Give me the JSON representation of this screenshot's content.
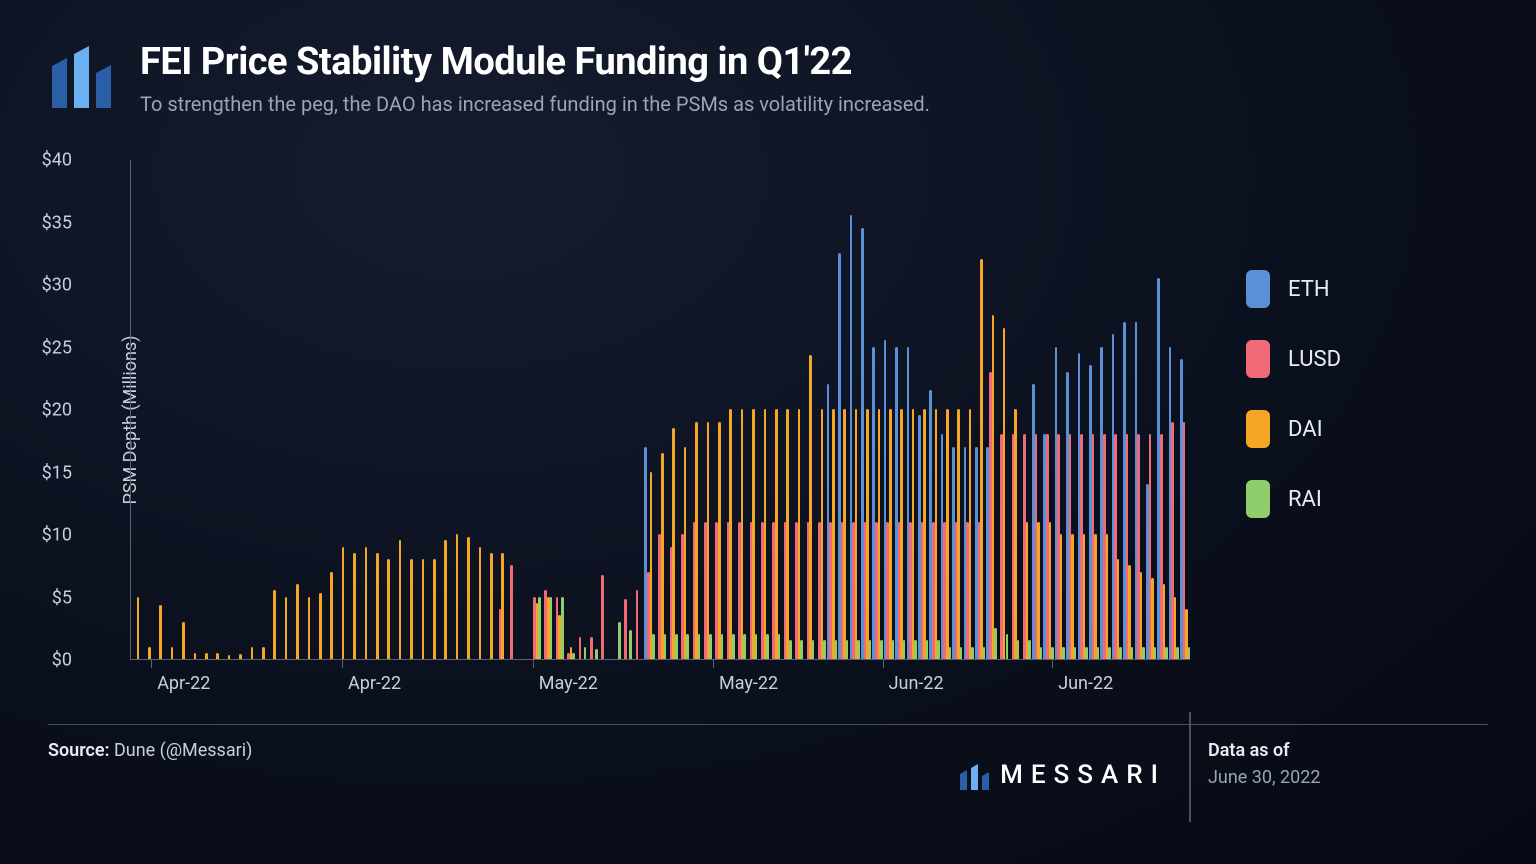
{
  "header": {
    "title": "FEI Price Stability Module Funding in Q1'22",
    "subtitle": "To strengthen the peg, the DAO has increased funding in the PSMs as volatility increased."
  },
  "chart": {
    "type": "grouped-bar",
    "ylabel": "PSM Depth (Millions)",
    "ylim": [
      0,
      40
    ],
    "ytick_step": 5,
    "ytick_prefix": "$",
    "y_tick_fontsize": 18,
    "x_labels": [
      "Apr-22",
      "Apr-22",
      "May-22",
      "May-22",
      "Jun-22",
      "Jun-22"
    ],
    "x_tick_fontsize": 18,
    "background_color": "transparent",
    "axis_color": "#5a6272",
    "bar_radius": 2,
    "series": [
      {
        "name": "ETH",
        "color": "#5b8fd6"
      },
      {
        "name": "LUSD",
        "color": "#f06a78"
      },
      {
        "name": "DAI",
        "color": "#f5a623"
      },
      {
        "name": "RAI",
        "color": "#8fce6a"
      }
    ],
    "data": [
      {
        "ETH": 0,
        "LUSD": 0,
        "DAI": 5,
        "RAI": 0
      },
      {
        "ETH": 0,
        "LUSD": 0,
        "DAI": 1,
        "RAI": 0
      },
      {
        "ETH": 0,
        "LUSD": 0,
        "DAI": 4.3,
        "RAI": 0
      },
      {
        "ETH": 0,
        "LUSD": 0,
        "DAI": 1,
        "RAI": 0
      },
      {
        "ETH": 0,
        "LUSD": 0,
        "DAI": 3,
        "RAI": 0
      },
      {
        "ETH": 0,
        "LUSD": 0,
        "DAI": 0.5,
        "RAI": 0
      },
      {
        "ETH": 0,
        "LUSD": 0,
        "DAI": 0.5,
        "RAI": 0
      },
      {
        "ETH": 0,
        "LUSD": 0,
        "DAI": 0.5,
        "RAI": 0
      },
      {
        "ETH": 0,
        "LUSD": 0,
        "DAI": 0.3,
        "RAI": 0
      },
      {
        "ETH": 0,
        "LUSD": 0,
        "DAI": 0.4,
        "RAI": 0
      },
      {
        "ETH": 0,
        "LUSD": 0,
        "DAI": 1,
        "RAI": 0
      },
      {
        "ETH": 0,
        "LUSD": 0,
        "DAI": 1,
        "RAI": 0
      },
      {
        "ETH": 0,
        "LUSD": 0,
        "DAI": 5.5,
        "RAI": 0
      },
      {
        "ETH": 0,
        "LUSD": 0,
        "DAI": 5,
        "RAI": 0
      },
      {
        "ETH": 0,
        "LUSD": 0,
        "DAI": 6,
        "RAI": 0
      },
      {
        "ETH": 0,
        "LUSD": 0,
        "DAI": 5,
        "RAI": 0
      },
      {
        "ETH": 0,
        "LUSD": 0,
        "DAI": 5.3,
        "RAI": 0
      },
      {
        "ETH": 0,
        "LUSD": 0,
        "DAI": 7,
        "RAI": 0
      },
      {
        "ETH": 0,
        "LUSD": 0,
        "DAI": 9,
        "RAI": 0
      },
      {
        "ETH": 0,
        "LUSD": 0,
        "DAI": 8.5,
        "RAI": 0
      },
      {
        "ETH": 0,
        "LUSD": 0,
        "DAI": 9,
        "RAI": 0
      },
      {
        "ETH": 0,
        "LUSD": 0,
        "DAI": 8.5,
        "RAI": 0
      },
      {
        "ETH": 0,
        "LUSD": 0,
        "DAI": 8,
        "RAI": 0
      },
      {
        "ETH": 0,
        "LUSD": 0,
        "DAI": 9.5,
        "RAI": 0
      },
      {
        "ETH": 0,
        "LUSD": 0,
        "DAI": 8,
        "RAI": 0
      },
      {
        "ETH": 0,
        "LUSD": 0,
        "DAI": 8,
        "RAI": 0
      },
      {
        "ETH": 0,
        "LUSD": 0,
        "DAI": 8,
        "RAI": 0
      },
      {
        "ETH": 0,
        "LUSD": 0,
        "DAI": 9.5,
        "RAI": 0
      },
      {
        "ETH": 0,
        "LUSD": 0,
        "DAI": 10,
        "RAI": 0
      },
      {
        "ETH": 0,
        "LUSD": 0,
        "DAI": 9.8,
        "RAI": 0
      },
      {
        "ETH": 0,
        "LUSD": 0,
        "DAI": 9,
        "RAI": 0
      },
      {
        "ETH": 0,
        "LUSD": 0,
        "DAI": 8.5,
        "RAI": 0
      },
      {
        "ETH": 0,
        "LUSD": 4,
        "DAI": 8.5,
        "RAI": 0
      },
      {
        "ETH": 0,
        "LUSD": 7.5,
        "DAI": 0,
        "RAI": 0
      },
      {
        "ETH": 0,
        "LUSD": 0,
        "DAI": 0,
        "RAI": 0
      },
      {
        "ETH": 0,
        "LUSD": 5,
        "DAI": 4.5,
        "RAI": 5
      },
      {
        "ETH": 0,
        "LUSD": 5.5,
        "DAI": 5,
        "RAI": 5
      },
      {
        "ETH": 0,
        "LUSD": 5,
        "DAI": 3.5,
        "RAI": 5
      },
      {
        "ETH": 0,
        "LUSD": 0.5,
        "DAI": 1,
        "RAI": 0.5
      },
      {
        "ETH": 0,
        "LUSD": 1.8,
        "DAI": 0,
        "RAI": 1
      },
      {
        "ETH": 0,
        "LUSD": 1.8,
        "DAI": 0,
        "RAI": 0.8
      },
      {
        "ETH": 0,
        "LUSD": 6.7,
        "DAI": 0,
        "RAI": 0
      },
      {
        "ETH": 0,
        "LUSD": 0,
        "DAI": 0,
        "RAI": 3
      },
      {
        "ETH": 0,
        "LUSD": 4.8,
        "DAI": 0,
        "RAI": 2.3
      },
      {
        "ETH": 0,
        "LUSD": 5.5,
        "DAI": 0,
        "RAI": 0
      },
      {
        "ETH": 17,
        "LUSD": 7,
        "DAI": 15,
        "RAI": 2
      },
      {
        "ETH": 0,
        "LUSD": 10,
        "DAI": 16.5,
        "RAI": 2
      },
      {
        "ETH": 0,
        "LUSD": 9,
        "DAI": 18.5,
        "RAI": 2
      },
      {
        "ETH": 0,
        "LUSD": 10,
        "DAI": 17,
        "RAI": 2
      },
      {
        "ETH": 0,
        "LUSD": 11,
        "DAI": 19,
        "RAI": 2
      },
      {
        "ETH": 0,
        "LUSD": 11,
        "DAI": 19,
        "RAI": 2
      },
      {
        "ETH": 0,
        "LUSD": 11,
        "DAI": 19,
        "RAI": 2
      },
      {
        "ETH": 0,
        "LUSD": 11,
        "DAI": 20,
        "RAI": 2
      },
      {
        "ETH": 0,
        "LUSD": 11,
        "DAI": 20,
        "RAI": 2
      },
      {
        "ETH": 0,
        "LUSD": 11,
        "DAI": 20,
        "RAI": 2
      },
      {
        "ETH": 0,
        "LUSD": 11,
        "DAI": 20,
        "RAI": 2
      },
      {
        "ETH": 0,
        "LUSD": 11,
        "DAI": 20,
        "RAI": 2
      },
      {
        "ETH": 0,
        "LUSD": 11,
        "DAI": 20,
        "RAI": 1.5
      },
      {
        "ETH": 0,
        "LUSD": 11,
        "DAI": 20,
        "RAI": 1.5
      },
      {
        "ETH": 0,
        "LUSD": 11,
        "DAI": 24.3,
        "RAI": 1.5
      },
      {
        "ETH": 0,
        "LUSD": 11,
        "DAI": 20,
        "RAI": 1.5
      },
      {
        "ETH": 22,
        "LUSD": 11,
        "DAI": 20,
        "RAI": 1.5
      },
      {
        "ETH": 32.5,
        "LUSD": 11,
        "DAI": 20,
        "RAI": 1.5
      },
      {
        "ETH": 35.5,
        "LUSD": 11,
        "DAI": 20,
        "RAI": 1.5
      },
      {
        "ETH": 34.5,
        "LUSD": 11,
        "DAI": 20,
        "RAI": 1.5
      },
      {
        "ETH": 25,
        "LUSD": 11,
        "DAI": 20,
        "RAI": 1.5
      },
      {
        "ETH": 25.5,
        "LUSD": 11,
        "DAI": 20,
        "RAI": 1.5
      },
      {
        "ETH": 25,
        "LUSD": 11,
        "DAI": 20,
        "RAI": 1.5
      },
      {
        "ETH": 25,
        "LUSD": 11,
        "DAI": 20,
        "RAI": 1.5
      },
      {
        "ETH": 19.5,
        "LUSD": 11,
        "DAI": 20,
        "RAI": 1.5
      },
      {
        "ETH": 21.5,
        "LUSD": 11,
        "DAI": 20,
        "RAI": 1.5
      },
      {
        "ETH": 18,
        "LUSD": 11,
        "DAI": 20,
        "RAI": 1
      },
      {
        "ETH": 17,
        "LUSD": 11,
        "DAI": 20,
        "RAI": 1
      },
      {
        "ETH": 17,
        "LUSD": 11,
        "DAI": 20,
        "RAI": 1
      },
      {
        "ETH": 17,
        "LUSD": 11,
        "DAI": 32,
        "RAI": 1
      },
      {
        "ETH": 17,
        "LUSD": 23,
        "DAI": 27.5,
        "RAI": 2.5
      },
      {
        "ETH": 0,
        "LUSD": 18,
        "DAI": 26.5,
        "RAI": 2
      },
      {
        "ETH": 0,
        "LUSD": 18,
        "DAI": 20,
        "RAI": 1.5
      },
      {
        "ETH": 0,
        "LUSD": 18,
        "DAI": 11,
        "RAI": 1.5
      },
      {
        "ETH": 22,
        "LUSD": 18,
        "DAI": 11,
        "RAI": 1
      },
      {
        "ETH": 18,
        "LUSD": 18,
        "DAI": 11,
        "RAI": 1
      },
      {
        "ETH": 25,
        "LUSD": 18,
        "DAI": 10,
        "RAI": 1
      },
      {
        "ETH": 23,
        "LUSD": 18,
        "DAI": 10,
        "RAI": 1
      },
      {
        "ETH": 24.5,
        "LUSD": 18,
        "DAI": 10,
        "RAI": 1
      },
      {
        "ETH": 23.5,
        "LUSD": 18,
        "DAI": 10,
        "RAI": 1
      },
      {
        "ETH": 25,
        "LUSD": 18,
        "DAI": 10,
        "RAI": 1
      },
      {
        "ETH": 26,
        "LUSD": 18,
        "DAI": 8,
        "RAI": 1
      },
      {
        "ETH": 27,
        "LUSD": 18,
        "DAI": 7.5,
        "RAI": 1
      },
      {
        "ETH": 27,
        "LUSD": 18,
        "DAI": 7,
        "RAI": 1
      },
      {
        "ETH": 14,
        "LUSD": 18,
        "DAI": 6.5,
        "RAI": 1
      },
      {
        "ETH": 30.5,
        "LUSD": 18,
        "DAI": 6,
        "RAI": 1
      },
      {
        "ETH": 25,
        "LUSD": 19,
        "DAI": 5,
        "RAI": 1
      },
      {
        "ETH": 24,
        "LUSD": 19,
        "DAI": 4,
        "RAI": 1
      }
    ]
  },
  "legend": {
    "items": [
      {
        "label": "ETH",
        "color": "#5b8fd6"
      },
      {
        "label": "LUSD",
        "color": "#f06a78"
      },
      {
        "label": "DAI",
        "color": "#f5a623"
      },
      {
        "label": "RAI",
        "color": "#8fce6a"
      }
    ]
  },
  "footer": {
    "source_label": "Source:",
    "source_value": "Dune (@Messari)",
    "brand": "MESSARI",
    "data_asof_label": "Data as of",
    "data_asof_date": "June 30, 2022"
  },
  "colors": {
    "title": "#ffffff",
    "subtitle": "#9aa4b4",
    "text": "#c8d0dc",
    "axis": "#5a6272",
    "logo_light": "#6bb0f0",
    "logo_dark": "#2a5fa8"
  }
}
